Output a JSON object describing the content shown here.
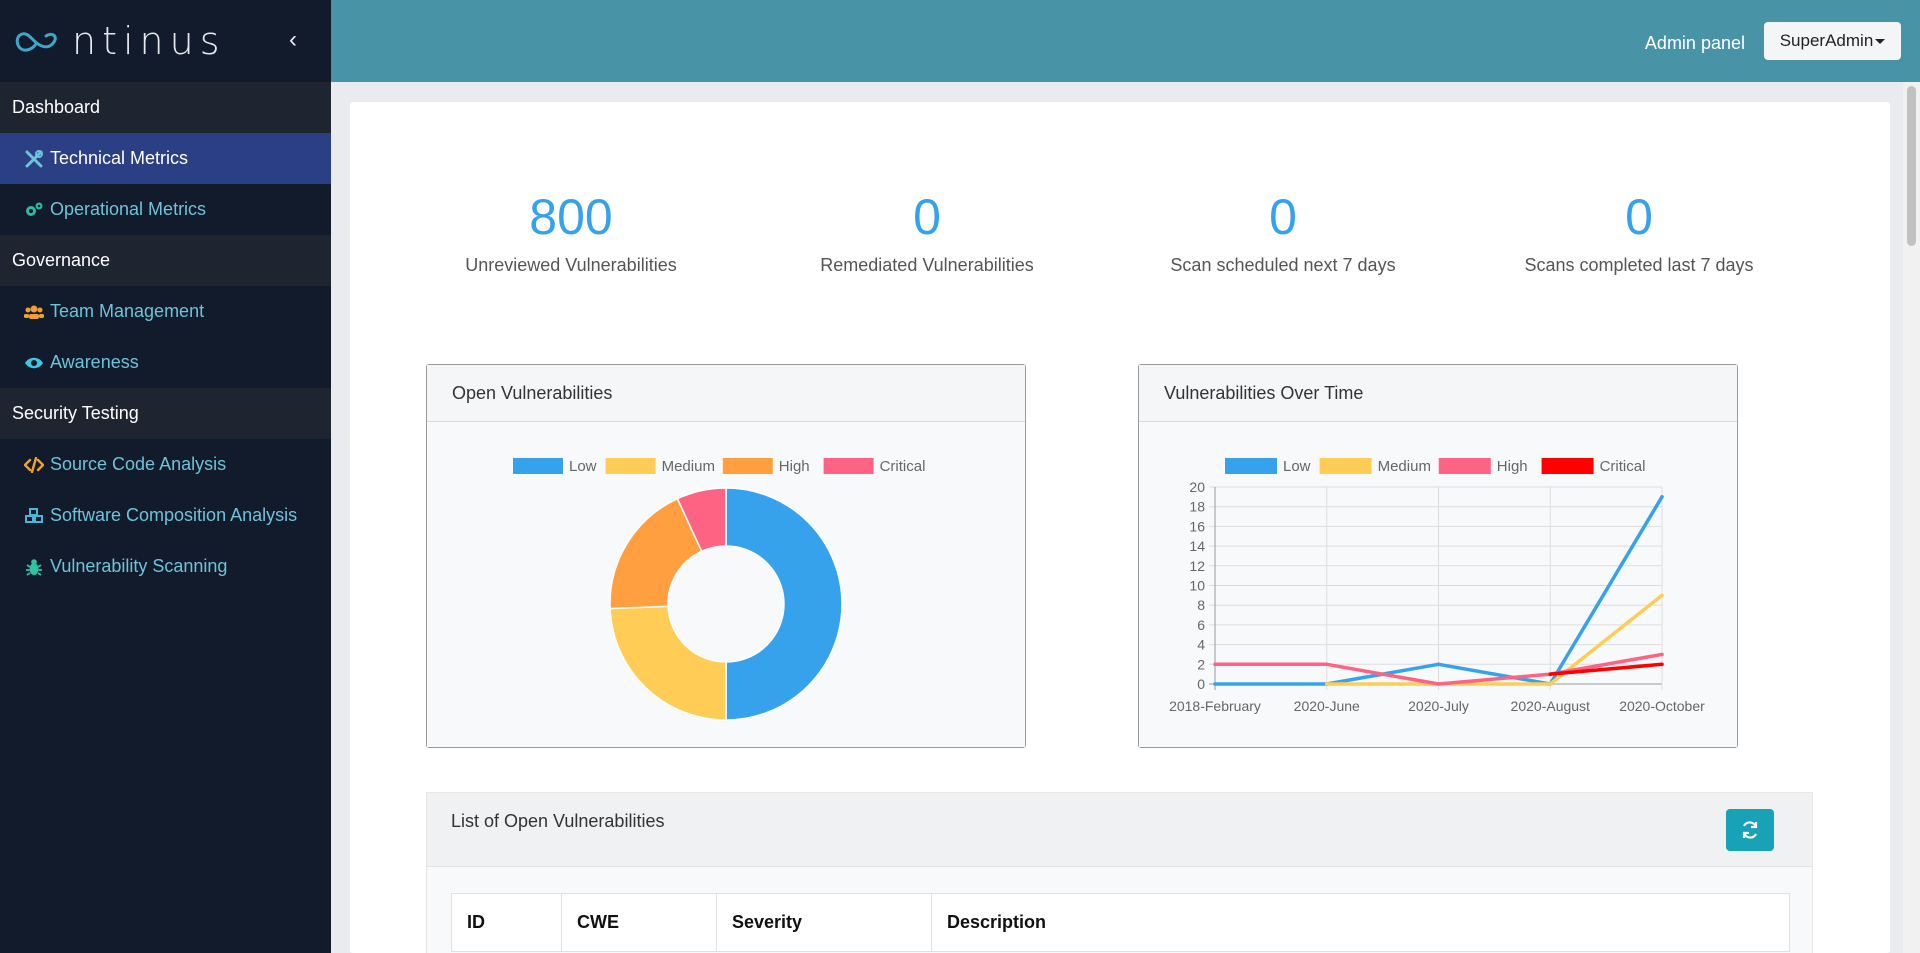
{
  "brand": {
    "name": "ntinus"
  },
  "sidebar": {
    "sections": [
      {
        "label": "Dashboard",
        "items": [
          {
            "label": "Technical Metrics",
            "icon": "tools-icon",
            "active": true
          },
          {
            "label": "Operational Metrics",
            "icon": "cogs-icon",
            "active": false
          }
        ]
      },
      {
        "label": "Governance",
        "items": [
          {
            "label": "Team Management",
            "icon": "users-icon",
            "active": false
          },
          {
            "label": "Awareness",
            "icon": "eye-icon",
            "active": false
          }
        ]
      },
      {
        "label": "Security Testing",
        "items": [
          {
            "label": "Source Code Analysis",
            "icon": "code-icon",
            "active": false
          },
          {
            "label": "Software Composition Analysis",
            "icon": "cubes-icon",
            "active": false
          },
          {
            "label": "Vulnerability Scanning",
            "icon": "bug-icon",
            "active": false
          }
        ]
      }
    ]
  },
  "topbar": {
    "admin_panel": "Admin panel",
    "user": "SuperAdmin"
  },
  "stats": [
    {
      "value": "800",
      "label": "Unreviewed Vulnerabilities"
    },
    {
      "value": "0",
      "label": "Remediated Vulnerabilities"
    },
    {
      "value": "0",
      "label": "Scan scheduled next 7 days"
    },
    {
      "value": "0",
      "label": "Scans completed last 7 days"
    }
  ],
  "cards": {
    "open_vulns_title": "Open Vulnerabilities",
    "over_time_title": "Vulnerabilities Over Time"
  },
  "list": {
    "title": "List of Open Vulnerabilities",
    "columns": [
      "ID",
      "CWE",
      "Severity",
      "Description"
    ]
  },
  "chart_data": [
    {
      "type": "pie",
      "title": "Open Vulnerabilities",
      "legend_position": "top",
      "donut": true,
      "categories": [
        "Low",
        "Medium",
        "High",
        "Critical"
      ],
      "values": [
        400,
        195,
        150,
        55
      ],
      "colors": [
        "#36a2eb",
        "#ffcd56",
        "#ff9f40",
        "#ff6384"
      ]
    },
    {
      "type": "line",
      "title": "Vulnerabilities Over Time",
      "legend_position": "top",
      "grid": true,
      "x": [
        "2018-February",
        "2020-June",
        "2020-July",
        "2020-August",
        "2020-October"
      ],
      "ylim": [
        0,
        20
      ],
      "yticks": [
        0,
        2,
        4,
        6,
        8,
        10,
        12,
        14,
        16,
        18,
        20
      ],
      "series": [
        {
          "name": "Low",
          "color": "#36a2eb",
          "values": [
            0,
            0,
            2,
            0,
            19
          ]
        },
        {
          "name": "Medium",
          "color": "#ffcd56",
          "values": [
            null,
            0,
            0,
            0,
            9
          ]
        },
        {
          "name": "High",
          "color": "#ff6384",
          "values": [
            2,
            2,
            0,
            1,
            3
          ]
        },
        {
          "name": "Critical",
          "color": "#ff0000",
          "values": [
            null,
            null,
            null,
            1,
            2
          ]
        }
      ]
    }
  ]
}
